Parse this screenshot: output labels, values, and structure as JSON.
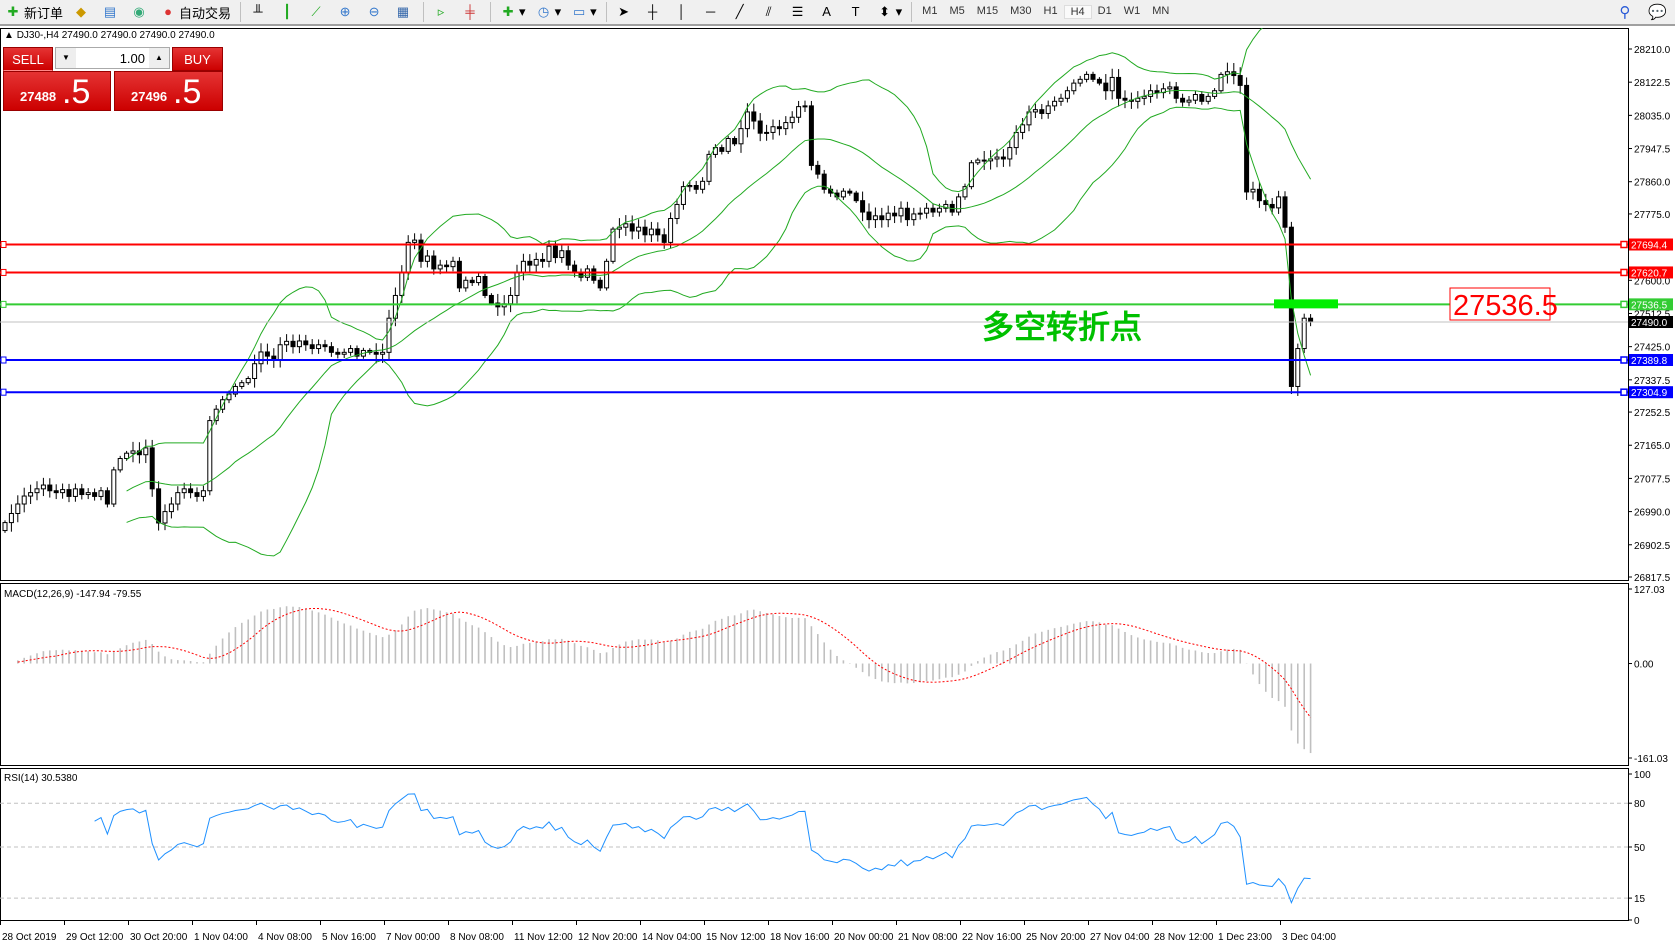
{
  "toolbar": {
    "new_order": "新订单",
    "auto_trading": "自动交易",
    "timeframes": [
      "M1",
      "M5",
      "M15",
      "M30",
      "H1",
      "H4",
      "D1",
      "W1",
      "MN"
    ],
    "active_timeframe": "H4",
    "icons": [
      "bar-chart-icon",
      "candlestick-icon",
      "line-chart-icon",
      "zoom-in-icon",
      "zoom-out-icon",
      "tile-windows-icon",
      "autoscroll-icon",
      "chart-shift-icon",
      "indicators-icon",
      "periods-icon",
      "templates-icon",
      "cursor-icon",
      "crosshair-icon",
      "vertical-line-icon",
      "horizontal-line-icon",
      "trendline-icon",
      "fibonacci-icon",
      "grid-icon",
      "text-icon",
      "text-label-icon",
      "arrows-icon"
    ]
  },
  "chart": {
    "title": "DJ30-,H4  27490.0 27490.0 27490.0 27490.0",
    "annotation": "多空转折点",
    "annotation_color": "#00c000",
    "price_box": "27536.5"
  },
  "trade_panel": {
    "sell_label": "SELL",
    "buy_label": "BUY",
    "lot": "1.00",
    "sell_main": "27488",
    "sell_pip": ".5",
    "buy_main": "27496",
    "buy_pip": ".5"
  },
  "chart_data": {
    "type": "candlestick",
    "symbol": "DJ30-",
    "timeframe": "H4",
    "ylim": [
      26817.5,
      28210
    ],
    "y_ticks": [
      "28210.0",
      "28122.5",
      "28035.0",
      "27947.5",
      "27860.0",
      "27775.0",
      "27600.0",
      "27512.5",
      "27425.0",
      "27337.5",
      "27252.5",
      "27165.0",
      "27077.5",
      "26990.0",
      "26902.5",
      "26817.5"
    ],
    "x_tick_labels": [
      "28 Oct 2019",
      "29 Oct 12:00",
      "30 Oct 20:00",
      "1 Nov 04:00",
      "4 Nov 08:00",
      "5 Nov 16:00",
      "7 Nov 00:00",
      "8 Nov 08:00",
      "11 Nov 12:00",
      "12 Nov 20:00",
      "14 Nov 04:00",
      "15 Nov 12:00",
      "18 Nov 16:00",
      "20 Nov 00:00",
      "21 Nov 08:00",
      "22 Nov 16:00",
      "25 Nov 20:00",
      "27 Nov 04:00",
      "28 Nov 12:00",
      "1 Dec 23:00",
      "3 Dec 04:00"
    ],
    "first_open": 26940,
    "closes": [
      26961,
      26985,
      27010,
      27031,
      27040,
      27050,
      27060,
      27045,
      27040,
      27048,
      27030,
      27050,
      27035,
      27040,
      27030,
      27045,
      27010,
      27100,
      27130,
      27144,
      27150,
      27140,
      27158,
      27050,
      26960,
      26990,
      27010,
      27040,
      27050,
      27040,
      27030,
      27045,
      27230,
      27260,
      27285,
      27300,
      27320,
      27330,
      27341,
      27380,
      27411,
      27400,
      27390,
      27430,
      27439,
      27425,
      27440,
      27430,
      27420,
      27430,
      27425,
      27410,
      27405,
      27410,
      27420,
      27400,
      27415,
      27410,
      27405,
      27410,
      27500,
      27560,
      27620,
      27700,
      27706,
      27650,
      27664,
      27630,
      27640,
      27636,
      27650,
      27580,
      27600,
      27594,
      27610,
      27560,
      27540,
      27530,
      27538,
      27560,
      27620,
      27650,
      27640,
      27655,
      27650,
      27690,
      27660,
      27678,
      27640,
      27620,
      27608,
      27630,
      27600,
      27580,
      27650,
      27735,
      27740,
      27749,
      27730,
      27740,
      27720,
      27735,
      27720,
      27700,
      27763,
      27800,
      27847,
      27850,
      27840,
      27861,
      27932,
      27950,
      27940,
      27974,
      27960,
      28000,
      28044,
      28020,
      27988,
      27990,
      28005,
      28000,
      28016,
      28030,
      28058,
      28060,
      27903,
      27880,
      27840,
      27830,
      27820,
      27835,
      27830,
      27810,
      27780,
      27760,
      27770,
      27760,
      27777,
      27770,
      27790,
      27760,
      27775,
      27777,
      27790,
      27780,
      27790,
      27800,
      27780,
      27820,
      27847,
      27910,
      27917,
      27915,
      27920,
      27925,
      27920,
      27950,
      27990,
      28010,
      28044,
      28050,
      28040,
      28060,
      28072,
      28080,
      28100,
      28120,
      28130,
      28143,
      28130,
      28120,
      28100,
      28135,
      28080,
      28075,
      28072,
      28080,
      28085,
      28100,
      28095,
      28105,
      28110,
      28080,
      28070,
      28075,
      28090,
      28072,
      28085,
      28100,
      28143,
      28150,
      28140,
      28114,
      27833,
      27840,
      27810,
      27800,
      27791,
      27820,
      27740,
      27320,
      27420,
      27500,
      27490
    ],
    "indicators": {
      "bollinger": {
        "color": "#22aa22"
      },
      "macd": {
        "label": "MACD(12,26,9) -147.94 -79.55",
        "ylim": [
          -161.03,
          127.03
        ],
        "ticks": [
          "127.03",
          "0.00",
          "-161.03"
        ],
        "hist_color": "#c0c0c0",
        "signal_color": "#ff0000"
      },
      "rsi": {
        "label": "RSI(14) 30.5380",
        "ticks": [
          "100",
          "80",
          "50",
          "15",
          "0"
        ],
        "levels": [
          80,
          50,
          15
        ],
        "color": "#1e90ff"
      }
    },
    "horizontal_lines": [
      {
        "price": 27694.4,
        "label": "27694.4",
        "color": "#ff0000"
      },
      {
        "price": 27620.7,
        "label": "27620.7",
        "color": "#ff0000"
      },
      {
        "price": 27536.5,
        "label": "27536.5",
        "color": "#33cc33"
      },
      {
        "price": 27389.8,
        "label": "27389.8",
        "color": "#0000ff"
      },
      {
        "price": 27304.9,
        "label": "27304.9",
        "color": "#0000ff"
      }
    ],
    "bid_line": {
      "price": 27490.0,
      "label": "27490.0",
      "color": "#c0c0c0"
    }
  }
}
